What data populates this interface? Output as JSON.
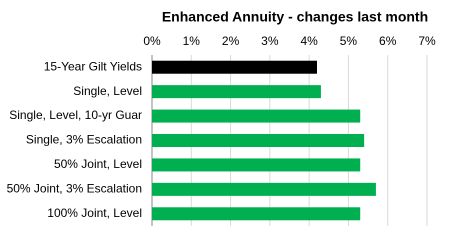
{
  "chart_data": {
    "type": "bar",
    "orientation": "horizontal",
    "title": "Enhanced Annuity - changes last month",
    "categories": [
      "15-Year Gilt Yields",
      "Single, Level",
      "Single, Level, 10-yr Guar",
      "Single, 3% Escalation",
      "50% Joint, Level",
      "50% Joint, 3% Escalation",
      "100% Joint, Level"
    ],
    "values": [
      4.2,
      4.3,
      5.3,
      5.4,
      5.3,
      5.7,
      5.3
    ],
    "colors": [
      "#000000",
      "#00b050",
      "#00b050",
      "#00b050",
      "#00b050",
      "#00b050",
      "#00b050"
    ],
    "xlim": [
      0,
      7
    ],
    "xticks": [
      {
        "value": 0,
        "label": "0%"
      },
      {
        "value": 1,
        "label": "1%"
      },
      {
        "value": 2,
        "label": "2%"
      },
      {
        "value": 3,
        "label": "3%"
      },
      {
        "value": 4,
        "label": "4%"
      },
      {
        "value": 5,
        "label": "5%"
      },
      {
        "value": 6,
        "label": "6%"
      },
      {
        "value": 7,
        "label": "7%"
      }
    ],
    "grid": true
  }
}
